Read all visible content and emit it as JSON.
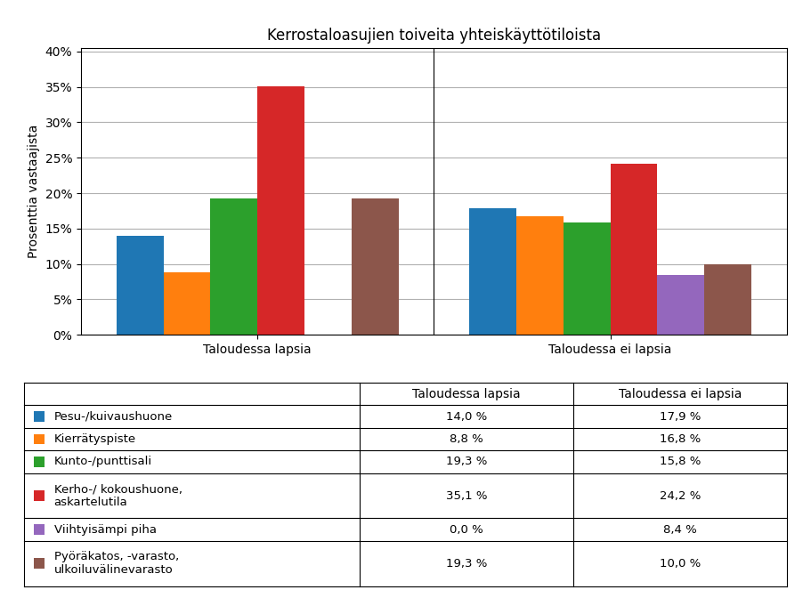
{
  "chart_data": {
    "type": "bar",
    "title": "Kerrostaloasujien toiveita yhteiskäyttötiloista",
    "ylabel": "Prosenttia vastaajista",
    "categories": [
      "Taloudessa lapsia",
      "Taloudessa ei lapsia"
    ],
    "series": [
      {
        "name": "Pesu-/kuivaushuone",
        "values": [
          0.14,
          0.179
        ],
        "value_labels": [
          "14,0 %",
          "17,9 %"
        ]
      },
      {
        "name": "Kierrätyspiste",
        "values": [
          0.088,
          0.168
        ],
        "value_labels": [
          "8,8 %",
          "16,8 %"
        ]
      },
      {
        "name": "Kunto-/punttisali",
        "values": [
          0.193,
          0.158
        ],
        "value_labels": [
          "19,3 %",
          "15,8 %"
        ]
      },
      {
        "name": "Kerho-/ kokoushuone,\naskartelutila",
        "values": [
          0.351,
          0.242
        ],
        "value_labels": [
          "35,1 %",
          "24,2 %"
        ]
      },
      {
        "name": "Viihtyisämpi piha",
        "values": [
          0.0,
          0.084
        ],
        "value_labels": [
          "0,0 %",
          "8,4 %"
        ]
      },
      {
        "name": "Pyöräkatos, -varasto,\nulkoiluvälinevarasto",
        "values": [
          0.193,
          0.1
        ],
        "value_labels": [
          "19,3 %",
          "10,0 %"
        ]
      }
    ],
    "ylim": [
      0,
      0.405
    ],
    "yticks": [
      {
        "value": 0.0,
        "label": "0%"
      },
      {
        "value": 0.05,
        "label": "5%"
      },
      {
        "value": 0.1,
        "label": "10%"
      },
      {
        "value": 0.15,
        "label": "15%"
      },
      {
        "value": 0.2,
        "label": "20%"
      },
      {
        "value": 0.25,
        "label": "25%"
      },
      {
        "value": 0.3,
        "label": "30%"
      },
      {
        "value": 0.35,
        "label": "35%"
      },
      {
        "value": 0.4,
        "label": "40%"
      }
    ],
    "grid": true
  }
}
